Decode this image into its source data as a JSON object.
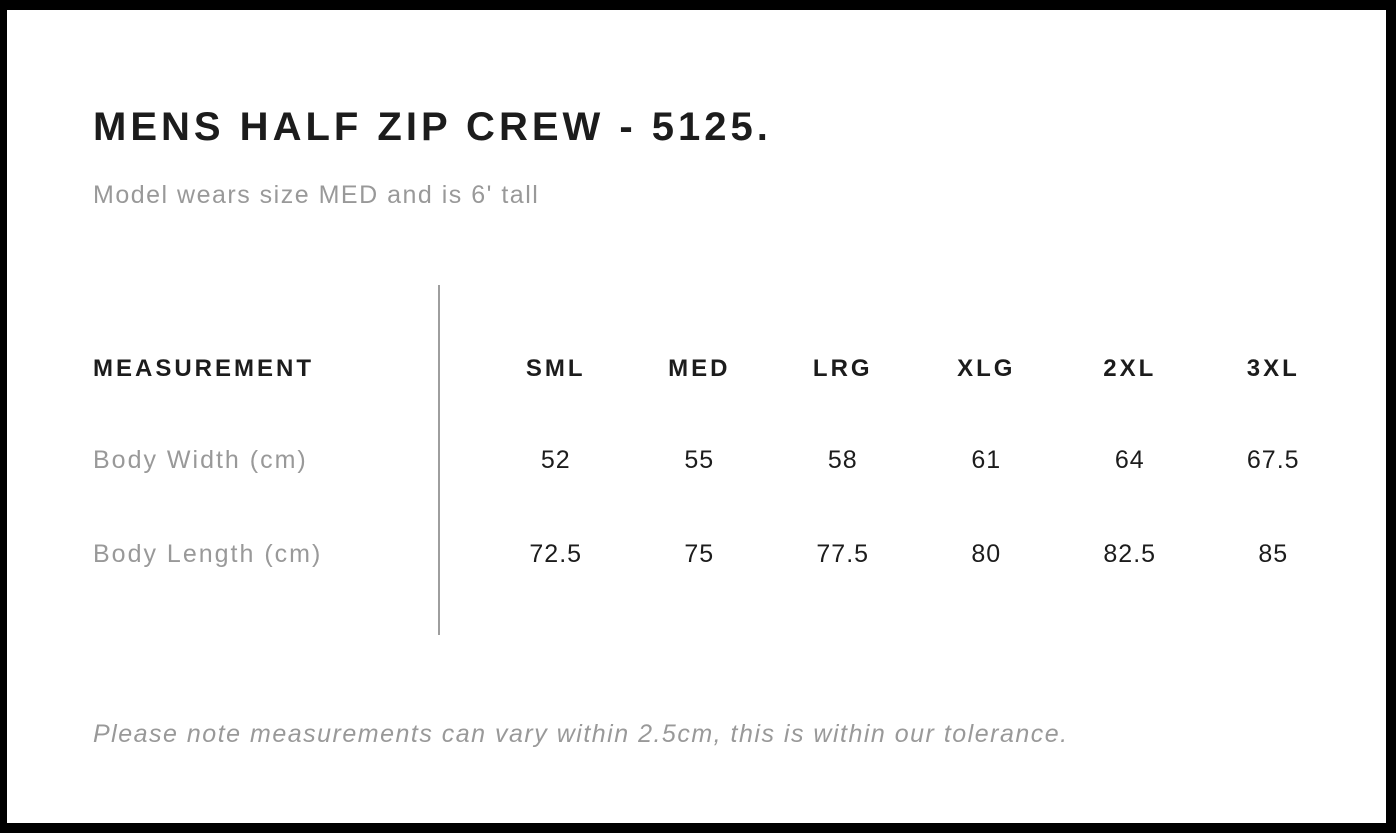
{
  "header": {
    "title": "MENS HALF ZIP CREW - 5125.",
    "subtitle": "Model wears size MED and is 6' tall"
  },
  "size_table": {
    "measurement_header": "MEASUREMENT",
    "size_columns": [
      "SML",
      "MED",
      "LRG",
      "XLG",
      "2XL",
      "3XL"
    ],
    "rows": [
      {
        "label": "Body Width (cm)",
        "values": [
          "52",
          "55",
          "58",
          "61",
          "64",
          "67.5"
        ]
      },
      {
        "label": "Body Length (cm)",
        "values": [
          "72.5",
          "75",
          "77.5",
          "80",
          "82.5",
          "85"
        ]
      }
    ]
  },
  "footer": {
    "note": "Please note measurements can vary within 2.5cm, this is within our tolerance."
  },
  "colors": {
    "frame_border": "#000000",
    "background": "#ffffff",
    "text_primary": "#1c1c1c",
    "text_secondary": "#999999",
    "divider": "#9e9e9e"
  }
}
